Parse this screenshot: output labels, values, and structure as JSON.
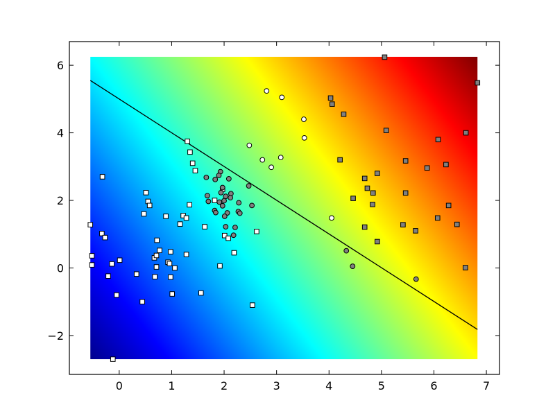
{
  "chart_data": {
    "type": "scatter",
    "title": "",
    "xlabel": "",
    "ylabel": "",
    "xlim": [
      -0.95,
      7.25
    ],
    "ylim": [
      -3.15,
      6.7
    ],
    "xticks": [
      0,
      1,
      2,
      3,
      4,
      5,
      6,
      7
    ],
    "yticks": [
      -2,
      0,
      2,
      4,
      6
    ],
    "grid": false,
    "legend": "none",
    "background": {
      "type": "heatmap",
      "colormap": "jet",
      "extent": {
        "x": [
          -0.55,
          6.83
        ],
        "y": [
          -2.7,
          6.25
        ]
      }
    },
    "line": {
      "x": [
        -0.55,
        6.83
      ],
      "y": [
        5.55,
        -1.82
      ],
      "color": "#000000"
    },
    "series": [
      {
        "marker": "square",
        "fill": "#ffffff",
        "points": [
          [
            1.3,
            3.75
          ],
          [
            1.35,
            3.43
          ],
          [
            1.4,
            3.1
          ],
          [
            1.45,
            2.88
          ],
          [
            -0.32,
            2.7
          ],
          [
            0.51,
            2.23
          ],
          [
            0.55,
            1.97
          ],
          [
            0.58,
            1.85
          ],
          [
            0.47,
            1.6
          ],
          [
            0.89,
            1.53
          ],
          [
            1.22,
            1.55
          ],
          [
            1.28,
            1.48
          ],
          [
            1.34,
            1.87
          ],
          [
            1.16,
            1.3
          ],
          [
            -0.55,
            1.28
          ],
          [
            -0.33,
            1.02
          ],
          [
            -0.27,
            0.9
          ],
          [
            0.72,
            0.82
          ],
          [
            0.77,
            0.52
          ],
          [
            0.67,
            0.3
          ],
          [
            0.71,
            0.37
          ],
          [
            0.98,
            0.48
          ],
          [
            1.28,
            0.4
          ],
          [
            -0.52,
            0.36
          ],
          [
            -0.52,
            0.09
          ],
          [
            -0.14,
            0.12
          ],
          [
            0.01,
            0.23
          ],
          [
            0.93,
            0.17
          ],
          [
            0.96,
            0.13
          ],
          [
            0.71,
            0.03
          ],
          [
            1.06,
            0.0
          ],
          [
            0.33,
            -0.18
          ],
          [
            -0.21,
            -0.24
          ],
          [
            0.68,
            -0.26
          ],
          [
            0.98,
            -0.27
          ],
          [
            -0.05,
            -0.8
          ],
          [
            1.01,
            -0.77
          ],
          [
            1.56,
            -0.74
          ],
          [
            0.44,
            -1.0
          ],
          [
            -0.12,
            -2.7
          ],
          [
            1.63,
            1.22
          ],
          [
            1.92,
            0.06
          ],
          [
            2.19,
            0.45
          ],
          [
            2.62,
            1.08
          ],
          [
            2.01,
            0.96
          ],
          [
            2.08,
            0.88
          ],
          [
            1.97,
            2.33
          ],
          [
            1.82,
            2.0
          ],
          [
            2.54,
            -1.1
          ]
        ]
      },
      {
        "marker": "circle",
        "fill": "#808080",
        "points": [
          [
            1.93,
            2.85
          ],
          [
            1.9,
            2.74
          ],
          [
            1.83,
            2.62
          ],
          [
            1.66,
            2.68
          ],
          [
            2.09,
            2.64
          ],
          [
            2.47,
            2.43
          ],
          [
            1.97,
            2.38
          ],
          [
            1.94,
            2.23
          ],
          [
            2.13,
            2.2
          ],
          [
            2.03,
            2.12
          ],
          [
            2.12,
            2.08
          ],
          [
            1.68,
            2.14
          ],
          [
            1.7,
            1.97
          ],
          [
            1.91,
            1.95
          ],
          [
            2.0,
            1.99
          ],
          [
            2.28,
            1.93
          ],
          [
            1.97,
            1.84
          ],
          [
            2.53,
            1.85
          ],
          [
            1.82,
            1.7
          ],
          [
            1.84,
            1.64
          ],
          [
            2.06,
            1.63
          ],
          [
            2.01,
            1.53
          ],
          [
            2.27,
            1.67
          ],
          [
            2.3,
            1.62
          ],
          [
            2.03,
            1.22
          ],
          [
            2.21,
            1.2
          ],
          [
            2.18,
            0.97
          ],
          [
            4.33,
            0.51
          ],
          [
            4.45,
            0.05
          ],
          [
            5.66,
            -0.33
          ]
        ]
      },
      {
        "marker": "circle",
        "fill": "#ffffff",
        "points": [
          [
            2.81,
            5.24
          ],
          [
            3.1,
            5.05
          ],
          [
            3.52,
            4.4
          ],
          [
            3.53,
            3.85
          ],
          [
            2.48,
            3.63
          ],
          [
            2.73,
            3.2
          ],
          [
            2.9,
            2.98
          ],
          [
            3.08,
            3.27
          ],
          [
            4.05,
            1.48
          ]
        ]
      },
      {
        "marker": "square",
        "fill": "#808080",
        "points": [
          [
            5.06,
            6.24
          ],
          [
            4.03,
            5.03
          ],
          [
            4.06,
            4.85
          ],
          [
            4.28,
            4.55
          ],
          [
            6.83,
            5.48
          ],
          [
            5.09,
            4.07
          ],
          [
            6.08,
            3.8
          ],
          [
            6.61,
            4.0
          ],
          [
            4.21,
            3.2
          ],
          [
            5.46,
            3.17
          ],
          [
            6.23,
            3.06
          ],
          [
            5.87,
            2.96
          ],
          [
            4.92,
            2.8
          ],
          [
            4.68,
            2.65
          ],
          [
            4.73,
            2.36
          ],
          [
            4.84,
            2.22
          ],
          [
            5.46,
            2.22
          ],
          [
            4.46,
            2.06
          ],
          [
            4.83,
            1.88
          ],
          [
            6.28,
            1.85
          ],
          [
            6.07,
            1.48
          ],
          [
            5.41,
            1.28
          ],
          [
            6.44,
            1.29
          ],
          [
            5.65,
            1.1
          ],
          [
            4.68,
            1.21
          ],
          [
            4.92,
            0.78
          ],
          [
            6.6,
            0.01
          ]
        ]
      }
    ]
  }
}
